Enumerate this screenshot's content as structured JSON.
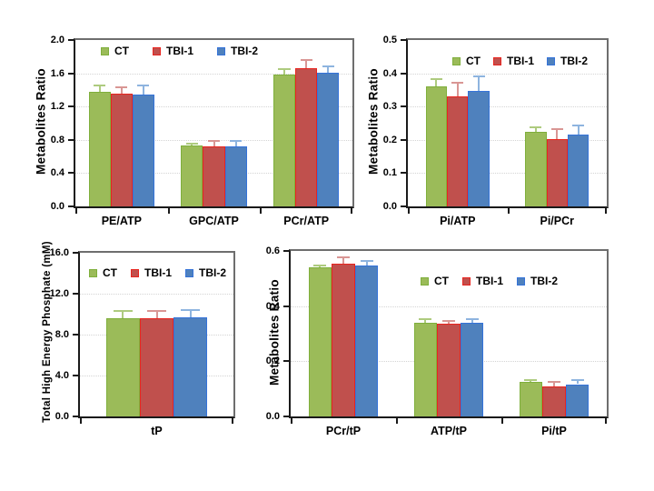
{
  "figure": {
    "background": "#ffffff"
  },
  "colors": {
    "axis": "#1a1a1a",
    "box": "#6e6e6e",
    "grid": "#d4d4d4",
    "series": {
      "ct": {
        "fill": "#9BBB59",
        "border": "#7FAF3C",
        "error": "#AECB7F"
      },
      "tbi1": {
        "fill": "#C0504D",
        "border": "#E8251F",
        "error": "#D99694"
      },
      "tbi2": {
        "fill": "#4F81BD",
        "border": "#3573D9",
        "error": "#8EB4DF"
      }
    }
  },
  "chart_data": [
    {
      "type": "bar",
      "title": "",
      "xlabel": "",
      "ylabel": "Metabolites Ratio",
      "ylim": [
        0,
        2.0
      ],
      "yticks": [
        0,
        0.4,
        0.8,
        1.2,
        1.6,
        2.0
      ],
      "ytick_labels": [
        "0.0",
        "0.4",
        "0.8",
        "1.2",
        "1.6",
        "2.0"
      ],
      "categories": [
        "PE/ATP",
        "GPC/ATP",
        "PCr/ATP"
      ],
      "grid": true,
      "legend_position": "inside-top-left",
      "series": [
        {
          "name": "CT",
          "color_key": "ct",
          "values": [
            1.38,
            0.73,
            1.59
          ],
          "errors": [
            0.07,
            0.02,
            0.06
          ]
        },
        {
          "name": "TBI-1",
          "color_key": "tbi1",
          "values": [
            1.35,
            0.72,
            1.66
          ],
          "errors": [
            0.08,
            0.07,
            0.1
          ]
        },
        {
          "name": "TBI-2",
          "color_key": "tbi2",
          "values": [
            1.34,
            0.72,
            1.61
          ],
          "errors": [
            0.11,
            0.07,
            0.07
          ]
        }
      ]
    },
    {
      "type": "bar",
      "title": "",
      "xlabel": "",
      "ylabel": "Metabolites Ratio",
      "ylim": [
        0,
        0.5
      ],
      "yticks": [
        0,
        0.1,
        0.2,
        0.3,
        0.4,
        0.5
      ],
      "ytick_labels": [
        "0.0",
        "0.1",
        "0.2",
        "0.3",
        "0.4",
        "0.5"
      ],
      "categories": [
        "Pi/ATP",
        "Pi/PCr"
      ],
      "grid": true,
      "legend_position": "inside-top-center",
      "series": [
        {
          "name": "CT",
          "color_key": "ct",
          "values": [
            0.36,
            0.225
          ],
          "errors": [
            0.023,
            0.013
          ]
        },
        {
          "name": "TBI-1",
          "color_key": "tbi1",
          "values": [
            0.33,
            0.201
          ],
          "errors": [
            0.042,
            0.031
          ]
        },
        {
          "name": "TBI-2",
          "color_key": "tbi2",
          "values": [
            0.347,
            0.217
          ],
          "errors": [
            0.043,
            0.027
          ]
        }
      ]
    },
    {
      "type": "bar",
      "title": "",
      "xlabel": "",
      "ylabel": "Total High Energy Phosphate (mM)",
      "ylim": [
        0,
        16.0
      ],
      "yticks": [
        0,
        4,
        8,
        12,
        16
      ],
      "ytick_labels": [
        "0.0",
        "4.0",
        "8.0",
        "12.0",
        "16.0"
      ],
      "categories": [
        "tP"
      ],
      "grid": false,
      "legend_position": "inside-top-center",
      "series": [
        {
          "name": "CT",
          "color_key": "ct",
          "values": [
            9.6
          ],
          "errors": [
            0.7
          ]
        },
        {
          "name": "TBI-1",
          "color_key": "tbi1",
          "values": [
            9.6
          ],
          "errors": [
            0.7
          ]
        },
        {
          "name": "TBI-2",
          "color_key": "tbi2",
          "values": [
            9.7
          ],
          "errors": [
            0.7
          ]
        }
      ]
    },
    {
      "type": "bar",
      "title": "",
      "xlabel": "",
      "ylabel": "Metabolites Ratio",
      "ylim": [
        0,
        0.6
      ],
      "yticks": [
        0,
        0.2,
        0.4,
        0.6
      ],
      "ytick_labels": [
        "0.0",
        "0.2",
        "0.4",
        "0.6"
      ],
      "categories": [
        "PCr/tP",
        "ATP/tP",
        "Pi/tP"
      ],
      "grid": false,
      "legend_position": "inside-middle-right",
      "series": [
        {
          "name": "CT",
          "color_key": "ct",
          "values": [
            0.54,
            0.34,
            0.125
          ],
          "errors": [
            0.008,
            0.012,
            0.007
          ]
        },
        {
          "name": "TBI-1",
          "color_key": "tbi1",
          "values": [
            0.555,
            0.335,
            0.11
          ],
          "errors": [
            0.022,
            0.01,
            0.016
          ]
        },
        {
          "name": "TBI-2",
          "color_key": "tbi2",
          "values": [
            0.548,
            0.34,
            0.117
          ],
          "errors": [
            0.015,
            0.012,
            0.014
          ]
        }
      ]
    }
  ]
}
